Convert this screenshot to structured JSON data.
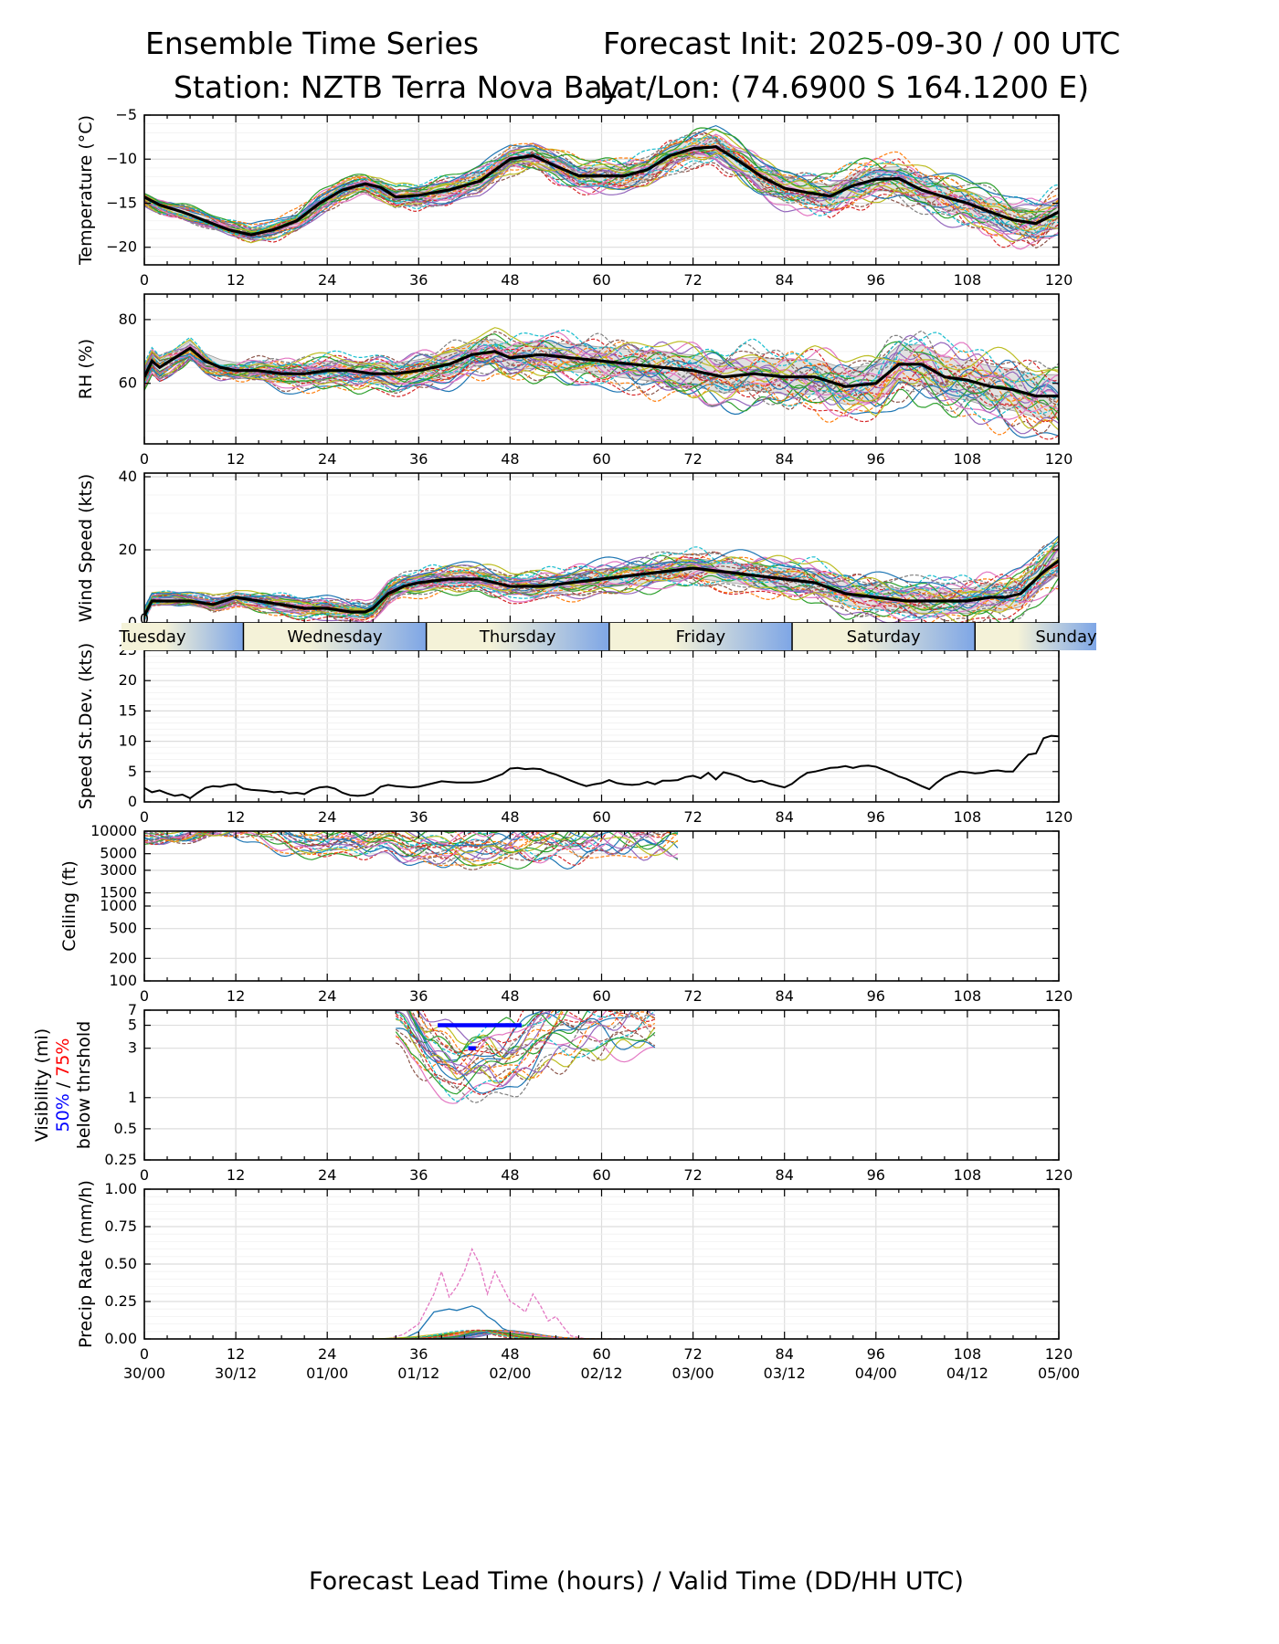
{
  "header": {
    "left_line1": "Ensemble Time Series",
    "right_line1": "Forecast Init: 2025-09-30 / 00 UTC",
    "left_line2": "Station: NZTB Terra Nova Bay",
    "right_line2": "Lat/Lon: (74.6900 S 164.1200 E)"
  },
  "xaxis": {
    "ticks": [
      0,
      12,
      24,
      36,
      48,
      60,
      72,
      84,
      96,
      108,
      120
    ],
    "valid_labels": [
      "30/00",
      "30/12",
      "01/00",
      "01/12",
      "02/00",
      "02/12",
      "03/00",
      "03/12",
      "04/00",
      "04/12",
      "05/00"
    ],
    "label": "Forecast Lead Time (hours) / Valid Time (DD/HH UTC)"
  },
  "day_band": {
    "days": [
      {
        "name": "Tuesday",
        "start_h": -3,
        "end_h": 13
      },
      {
        "name": "Wednesday",
        "start_h": 13,
        "end_h": 37
      },
      {
        "name": "Thursday",
        "start_h": 37,
        "end_h": 61
      },
      {
        "name": "Friday",
        "start_h": 61,
        "end_h": 85
      },
      {
        "name": "Saturday",
        "start_h": 85,
        "end_h": 109
      },
      {
        "name": "Sunday",
        "start_h": 109,
        "end_h": 125
      }
    ],
    "gradient_light": "#f4f2d8",
    "gradient_dark": "#7ea6e6"
  },
  "member_colors": [
    "#1f77b4",
    "#ff7f0e",
    "#2ca02c",
    "#d62728",
    "#9467bd",
    "#8c564b",
    "#e377c2",
    "#7f7f7f",
    "#bcbd22",
    "#17becf"
  ],
  "chart_data": [
    {
      "id": "temp",
      "type": "line",
      "ylabel": "Temperature (°C)",
      "ylim": [
        -22,
        -5
      ],
      "yticks": [
        -20,
        -15,
        -10,
        -5
      ],
      "ytick_labels": [
        "−20",
        "−15",
        "−10",
        "−5"
      ],
      "members": 30,
      "spread_scale": 1.0,
      "mean": {
        "x": [
          0,
          2,
          5,
          8,
          11,
          14,
          17,
          20,
          23,
          26,
          29,
          31,
          33,
          36,
          40,
          44,
          48,
          51,
          54,
          57,
          60,
          63,
          66,
          69,
          72,
          75,
          78,
          81,
          84,
          87,
          90,
          93,
          96,
          99,
          102,
          105,
          108,
          111,
          114,
          117,
          120
        ],
        "y": [
          -14.3,
          -15.2,
          -16,
          -17,
          -18,
          -18.6,
          -18,
          -17,
          -15,
          -13.5,
          -12.8,
          -13.2,
          -14.3,
          -14.1,
          -13.5,
          -12.5,
          -10,
          -9.6,
          -10.8,
          -11.9,
          -11.9,
          -11.9,
          -11.2,
          -9.6,
          -8.8,
          -8.6,
          -10.2,
          -12,
          -13.3,
          -13.8,
          -14.2,
          -13,
          -12.3,
          -12.2,
          -13.5,
          -14.3,
          -15,
          -16,
          -16.9,
          -17.3,
          -16
        ]
      }
    },
    {
      "id": "rh",
      "type": "line",
      "ylabel": "RH (%)",
      "ylim": [
        41,
        88
      ],
      "yticks": [
        60,
        80
      ],
      "ytick_labels": [
        "60",
        "80"
      ],
      "members": 30,
      "spread_scale": 1.6,
      "mean": {
        "x": [
          0,
          1,
          2,
          4,
          6,
          8,
          10,
          12,
          15,
          18,
          21,
          24,
          27,
          30,
          33,
          36,
          40,
          43,
          46,
          48,
          52,
          56,
          60,
          64,
          68,
          72,
          76,
          80,
          84,
          88,
          92,
          96,
          99,
          102,
          105,
          108,
          111,
          114,
          117,
          120
        ],
        "y": [
          62,
          67,
          65,
          68,
          71,
          67,
          65,
          64,
          64,
          63,
          63,
          64,
          64,
          63,
          63,
          64,
          66,
          69,
          70,
          68,
          69,
          68,
          67,
          66,
          65,
          64,
          62,
          63,
          62,
          62,
          59,
          60,
          66,
          66,
          62,
          61,
          59,
          58,
          56,
          56
        ]
      }
    },
    {
      "id": "wind",
      "type": "line",
      "ylabel": "Wind Speed (kts)",
      "ylim": [
        0,
        41
      ],
      "yticks": [
        0,
        20,
        40
      ],
      "ytick_labels": [
        "0",
        "20",
        "40"
      ],
      "members": 30,
      "spread_scale": 1.0,
      "mean": {
        "x": [
          0,
          1,
          3,
          6,
          9,
          12,
          15,
          18,
          21,
          24,
          27,
          29,
          30,
          32,
          34,
          36,
          40,
          44,
          48,
          52,
          56,
          60,
          64,
          68,
          72,
          76,
          80,
          84,
          88,
          92,
          96,
          100,
          104,
          108,
          111,
          113,
          115,
          118,
          120
        ],
        "y": [
          2,
          6,
          6,
          6,
          5,
          7,
          6,
          5,
          4,
          4,
          3,
          3,
          4,
          8,
          10,
          11,
          12,
          12,
          10,
          10,
          11,
          12,
          13,
          14,
          15,
          14,
          13,
          12,
          11,
          8,
          7,
          6,
          6,
          6,
          7,
          7,
          8,
          14,
          17
        ]
      }
    },
    {
      "id": "sd",
      "type": "line",
      "ylabel": "Speed St.Dev. (kts)",
      "ylim": [
        0,
        25
      ],
      "yticks": [
        0,
        5,
        10,
        15,
        20,
        25
      ],
      "ytick_labels": [
        "0",
        "5",
        "10",
        "15",
        "20",
        "25"
      ],
      "series": [
        {
          "name": "st.dev",
          "x": [
            0,
            1,
            2,
            3,
            4,
            5,
            6,
            7,
            8,
            9,
            10,
            11,
            12,
            13,
            14,
            15,
            16,
            17,
            18,
            19,
            20,
            21,
            22,
            23,
            24,
            25,
            26,
            27,
            28,
            29,
            30,
            31,
            32,
            33,
            34,
            35,
            36,
            37,
            38,
            39,
            40,
            41,
            42,
            43,
            44,
            45,
            46,
            47,
            48,
            49,
            50,
            51,
            52,
            53,
            54,
            55,
            56,
            57,
            58,
            59,
            60,
            61,
            62,
            63,
            64,
            65,
            66,
            67,
            68,
            69,
            70,
            71,
            72,
            73,
            74,
            75,
            76,
            77,
            78,
            79,
            80,
            81,
            82,
            83,
            84,
            85,
            86,
            87,
            88,
            89,
            90,
            91,
            92,
            93,
            94,
            95,
            96,
            97,
            98,
            99,
            100,
            101,
            102,
            103,
            104,
            105,
            106,
            107,
            108,
            109,
            110,
            111,
            112,
            113,
            114,
            115,
            116,
            117,
            118,
            119,
            120
          ],
          "y": [
            2.3,
            1.6,
            1.9,
            1.4,
            1.0,
            1.2,
            0.6,
            1.5,
            2.3,
            2.6,
            2.5,
            2.8,
            2.9,
            2.2,
            2.0,
            1.9,
            1.8,
            1.6,
            1.7,
            1.4,
            1.5,
            1.3,
            2.0,
            2.4,
            2.5,
            2.2,
            1.5,
            1.1,
            1.0,
            1.1,
            1.5,
            2.5,
            2.8,
            2.6,
            2.5,
            2.4,
            2.5,
            2.8,
            3.1,
            3.4,
            3.3,
            3.2,
            3.2,
            3.2,
            3.3,
            3.6,
            4.1,
            4.6,
            5.5,
            5.6,
            5.4,
            5.5,
            5.4,
            4.9,
            4.5,
            4.0,
            3.5,
            3.0,
            2.6,
            2.9,
            3.1,
            3.6,
            3.1,
            2.9,
            2.8,
            2.9,
            3.3,
            2.9,
            3.5,
            3.5,
            3.6,
            4.1,
            4.3,
            3.9,
            4.8,
            3.7,
            4.9,
            4.6,
            4.2,
            3.6,
            3.3,
            3.5,
            3.0,
            2.7,
            2.4,
            3.0,
            4.0,
            4.8,
            5.0,
            5.3,
            5.6,
            5.7,
            5.9,
            5.6,
            5.9,
            6.0,
            5.8,
            5.3,
            4.8,
            4.2,
            3.8,
            3.2,
            2.6,
            2.1,
            3.2,
            4.1,
            4.6,
            5.0,
            4.9,
            4.7,
            4.8,
            5.1,
            5.2,
            5.0,
            5.0,
            6.5,
            7.8,
            8.0,
            10.5,
            10.9,
            10.8
          ]
        }
      ]
    },
    {
      "id": "ceiling",
      "type": "line",
      "ylabel": "Ceiling (ft)",
      "scale": "log",
      "ylim": [
        100,
        10000
      ],
      "yticks": [
        100,
        200,
        500,
        1000,
        1500,
        3000,
        5000,
        10000
      ],
      "ytick_labels": [
        "100",
        "200",
        "500",
        "1000",
        "1500",
        "3000",
        "5000",
        "10000"
      ],
      "members": 24,
      "mean": {
        "x": [
          0,
          4,
          8,
          14,
          18,
          22,
          26,
          30,
          34,
          38,
          42,
          46,
          50,
          54,
          58,
          62,
          66,
          70
        ],
        "y": [
          10000,
          9500,
          10000,
          10000,
          8500,
          7000,
          7400,
          7600,
          7000,
          6300,
          5800,
          6000,
          6900,
          7600,
          8100,
          8700,
          9300,
          10000
        ]
      }
    },
    {
      "id": "vis",
      "type": "line",
      "ylabel": "Visibility (mi)",
      "scale": "log",
      "ylim": [
        0.25,
        7
      ],
      "yticks": [
        0.25,
        0.5,
        1,
        3,
        5,
        7
      ],
      "ytick_labels": [
        "0.25",
        "0.5",
        "1",
        "3",
        "5",
        "7"
      ],
      "extra_labels": {
        "p50": "50%",
        "sep": " / ",
        "p75": "75%",
        "below": "below thrshold",
        "p50_color": "#0000ff",
        "p75_color": "#ff0000"
      },
      "members": 26,
      "mean": {
        "x": [
          33,
          35,
          37,
          39,
          41,
          43,
          45,
          47,
          49,
          51,
          53,
          55,
          57,
          59,
          61,
          63,
          65,
          67
        ],
        "y": [
          7,
          4.2,
          3.0,
          2.4,
          2.0,
          2.1,
          2.3,
          2.2,
          2.6,
          3.4,
          4.2,
          5.2,
          6.0,
          6.2,
          6.5,
          6.8,
          7,
          7
        ]
      },
      "threshold_50": {
        "x": [
          38.5,
          49.5
        ],
        "y": 5
      },
      "threshold_75": {
        "x": [
          42.5,
          43.5
        ],
        "y": 3
      }
    },
    {
      "id": "precip",
      "type": "line",
      "ylabel": "Precip Rate (mm/h)",
      "ylim": [
        0,
        1
      ],
      "yticks": [
        0,
        0.25,
        0.5,
        0.75,
        1.0
      ],
      "ytick_labels": [
        "0.00",
        "0.25",
        "0.50",
        "0.75",
        "1.00"
      ],
      "members": 24,
      "series": [
        {
          "name": "pink",
          "color": "#e377c2",
          "dashed": true,
          "x": [
            32,
            34,
            36,
            38,
            39,
            40,
            41,
            42,
            43,
            44,
            45,
            46,
            47,
            48,
            49,
            50,
            51,
            52,
            53,
            54,
            55,
            56,
            58,
            62
          ],
          "y": [
            0,
            0.03,
            0.1,
            0.3,
            0.45,
            0.28,
            0.35,
            0.45,
            0.6,
            0.5,
            0.3,
            0.45,
            0.35,
            0.25,
            0.22,
            0.18,
            0.3,
            0.22,
            0.12,
            0.15,
            0.08,
            0.02,
            0,
            0
          ]
        },
        {
          "name": "blue",
          "color": "#1f77b4",
          "dashed": false,
          "x": [
            34,
            36,
            38,
            40,
            41,
            43,
            44,
            45,
            46,
            47,
            49,
            52,
            55
          ],
          "y": [
            0,
            0.05,
            0.18,
            0.2,
            0.19,
            0.22,
            0.2,
            0.15,
            0.12,
            0.07,
            0.03,
            0,
            0
          ]
        }
      ]
    }
  ]
}
